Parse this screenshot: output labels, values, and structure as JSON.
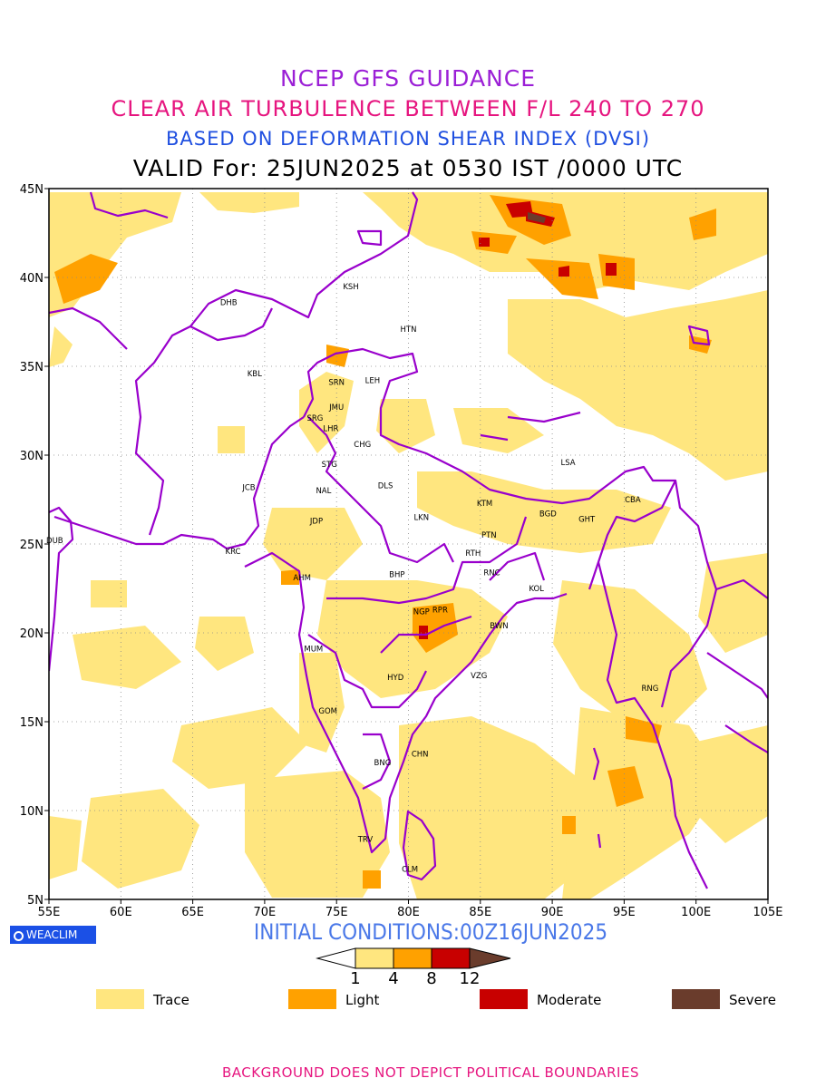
{
  "titles": {
    "line1": "NCEP GFS GUIDANCE",
    "line2": "CLEAR AIR TURBULENCE BETWEEN F/L 240 TO 270",
    "line3": "BASED ON DEFORMATION SHEAR INDEX (DVSI)",
    "line4": "VALID For: 25JUN2025 at 0530 IST /0000 UTC"
  },
  "axes": {
    "lon_labels": [
      "55E",
      "60E",
      "65E",
      "70E",
      "75E",
      "80E",
      "85E",
      "90E",
      "95E",
      "100E",
      "105E"
    ],
    "lat_labels": [
      "45N",
      "40N",
      "35N",
      "30N",
      "25N",
      "20N",
      "15N",
      "10N",
      "5N"
    ]
  },
  "cities": [
    {
      "name": "KSH",
      "lon": 76.0,
      "lat": 39.5
    },
    {
      "name": "DHB",
      "lon": 67.5,
      "lat": 38.6
    },
    {
      "name": "HTN",
      "lon": 80.0,
      "lat": 37.1
    },
    {
      "name": "KBL",
      "lon": 69.3,
      "lat": 34.6
    },
    {
      "name": "SRN",
      "lon": 75.0,
      "lat": 34.1
    },
    {
      "name": "LEH",
      "lon": 77.5,
      "lat": 34.2
    },
    {
      "name": "JMU",
      "lon": 75.0,
      "lat": 32.7
    },
    {
      "name": "SRG",
      "lon": 73.5,
      "lat": 32.1
    },
    {
      "name": "LHR",
      "lon": 74.6,
      "lat": 31.5
    },
    {
      "name": "CHG",
      "lon": 76.8,
      "lat": 30.6
    },
    {
      "name": "LSA",
      "lon": 91.1,
      "lat": 29.6
    },
    {
      "name": "STG",
      "lon": 74.5,
      "lat": 29.5
    },
    {
      "name": "JCB",
      "lon": 68.9,
      "lat": 28.2
    },
    {
      "name": "DLS",
      "lon": 78.4,
      "lat": 28.3
    },
    {
      "name": "NAL",
      "lon": 74.1,
      "lat": 28.0
    },
    {
      "name": "CBA",
      "lon": 95.6,
      "lat": 27.5
    },
    {
      "name": "KTM",
      "lon": 85.3,
      "lat": 27.3
    },
    {
      "name": "LKN",
      "lon": 80.9,
      "lat": 26.5
    },
    {
      "name": "BGD",
      "lon": 89.7,
      "lat": 26.7
    },
    {
      "name": "GHT",
      "lon": 92.4,
      "lat": 26.4
    },
    {
      "name": "JDP",
      "lon": 73.6,
      "lat": 26.3
    },
    {
      "name": "PTN",
      "lon": 85.6,
      "lat": 25.5
    },
    {
      "name": "DUB",
      "lon": 55.4,
      "lat": 25.2
    },
    {
      "name": "RTH",
      "lon": 84.5,
      "lat": 24.5
    },
    {
      "name": "KRC",
      "lon": 67.8,
      "lat": 24.6
    },
    {
      "name": "BHP",
      "lon": 79.2,
      "lat": 23.3
    },
    {
      "name": "AHM",
      "lon": 72.6,
      "lat": 23.1
    },
    {
      "name": "RNC",
      "lon": 85.8,
      "lat": 23.4
    },
    {
      "name": "KOL",
      "lon": 88.9,
      "lat": 22.5
    },
    {
      "name": "NGP",
      "lon": 80.9,
      "lat": 21.2
    },
    {
      "name": "RPR",
      "lon": 82.2,
      "lat": 21.3
    },
    {
      "name": "BWN",
      "lon": 86.3,
      "lat": 20.4
    },
    {
      "name": "MUM",
      "lon": 73.4,
      "lat": 19.1
    },
    {
      "name": "HYD",
      "lon": 79.1,
      "lat": 17.5
    },
    {
      "name": "VZG",
      "lon": 84.9,
      "lat": 17.6
    },
    {
      "name": "RNG",
      "lon": 96.8,
      "lat": 16.9
    },
    {
      "name": "GOM",
      "lon": 74.4,
      "lat": 15.6
    },
    {
      "name": "CHN",
      "lon": 80.8,
      "lat": 13.2
    },
    {
      "name": "BNG",
      "lon": 78.2,
      "lat": 12.7
    },
    {
      "name": "TRV",
      "lon": 77.0,
      "lat": 8.4
    },
    {
      "name": "CLM",
      "lon": 80.1,
      "lat": 6.7
    }
  ],
  "initial_conditions": "INITIAL CONDITIONS:00Z16JUN2025",
  "logo_text": "WEACLIM",
  "colorbar": {
    "ticks": [
      "1",
      "4",
      "8",
      "12"
    ],
    "colors": [
      "#ffffff",
      "#ffe67f",
      "#ffa100",
      "#c80000",
      "#6a3c2c"
    ]
  },
  "legend": [
    {
      "label": "Trace",
      "color": "#ffe67f"
    },
    {
      "label": "Light",
      "color": "#ffa100"
    },
    {
      "label": "Moderate",
      "color": "#c80000"
    },
    {
      "label": "Severe",
      "color": "#6a3c2c"
    }
  ],
  "colors": {
    "boundary": "#9900cc",
    "grid": "#8a8a8a"
  },
  "footer": "BACKGROUND DOES NOT DEPICT POLITICAL BOUNDARIES"
}
